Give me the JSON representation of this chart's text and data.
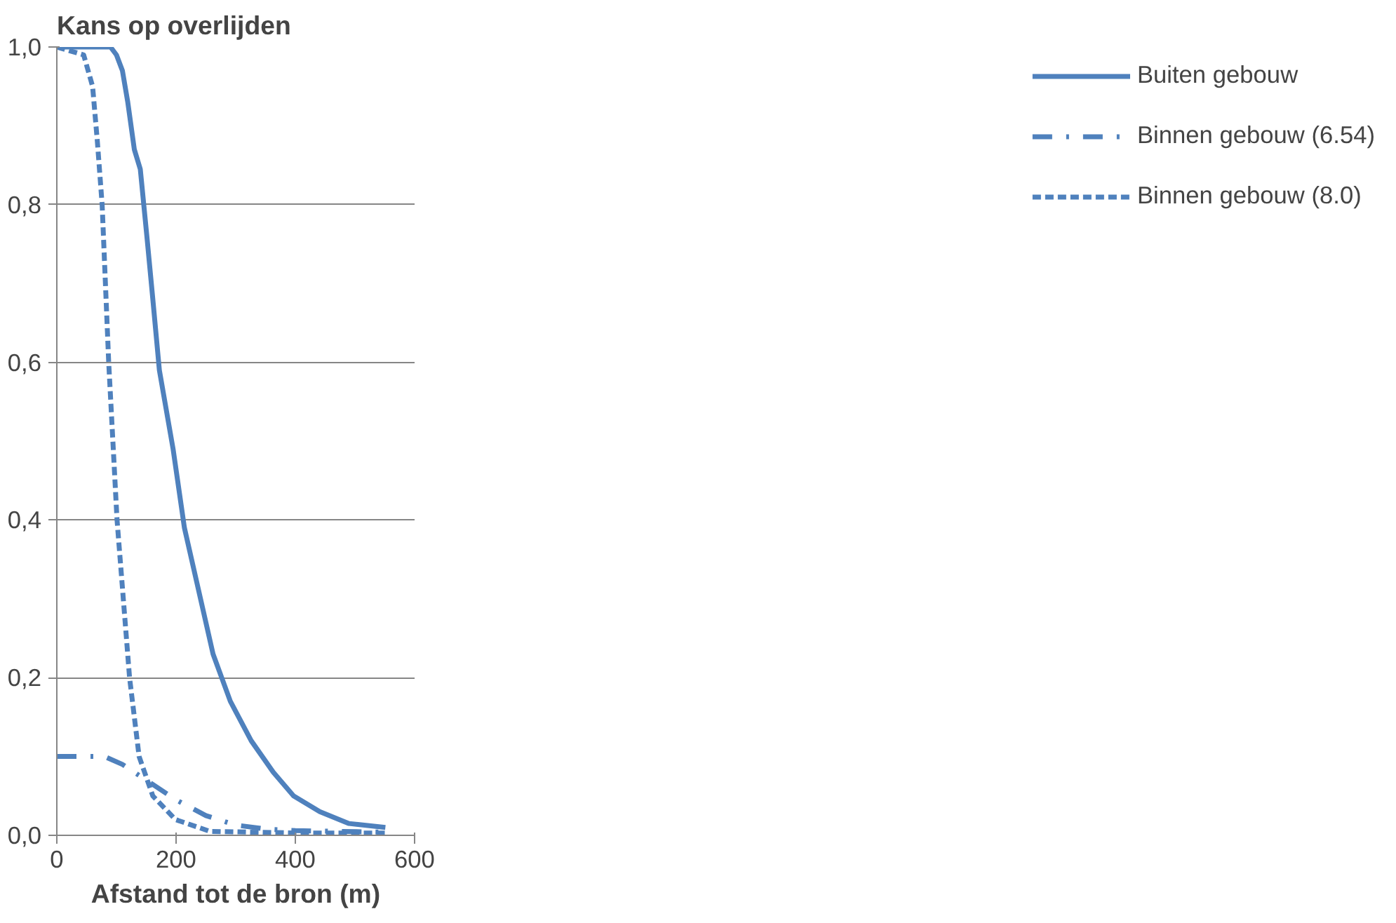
{
  "chart_data": {
    "type": "line",
    "title": "Kans op overlijden",
    "xlabel": "Afstand tot de bron (m)",
    "xlim": [
      0,
      600
    ],
    "xticks": [
      0,
      200,
      400,
      600
    ],
    "ylim": [
      0,
      1.0
    ],
    "yticks": [
      {
        "value": 0,
        "label": "0,0"
      },
      {
        "value": 0.2,
        "label": "0,2"
      },
      {
        "value": 0.4,
        "label": "0,4"
      },
      {
        "value": 0.6,
        "label": "0,6"
      },
      {
        "value": 0.8,
        "label": "0,8"
      },
      {
        "value": 1.0,
        "label": "1,0"
      }
    ],
    "grid": "y",
    "legend": "right",
    "marker": "none",
    "series": [
      {
        "name": "Buiten gebouw",
        "color": "#4f81bd",
        "line_style": "solid",
        "x": [
          0,
          50,
          90,
          100,
          110,
          119,
          130,
          140,
          151,
          161,
          172,
          195,
          214,
          238,
          262,
          291,
          326,
          363,
          397,
          441,
          490,
          551
        ],
        "values": [
          1.0,
          1.0,
          1.0,
          0.99,
          0.97,
          0.93,
          0.87,
          0.845,
          0.76,
          0.68,
          0.59,
          0.49,
          0.39,
          0.31,
          0.23,
          0.17,
          0.12,
          0.08,
          0.05,
          0.03,
          0.015,
          0.01
        ]
      },
      {
        "name": "Binnen gebouw (6.54)",
        "color": "#4f81bd",
        "line_style": "dashdot",
        "x": [
          0,
          40,
          80,
          110,
          130,
          160,
          200,
          250,
          300,
          350,
          400,
          550
        ],
        "values": [
          0.1,
          0.1,
          0.1,
          0.09,
          0.08,
          0.065,
          0.045,
          0.025,
          0.013,
          0.008,
          0.006,
          0.004
        ]
      },
      {
        "name": "Binnen gebouw (8.0)",
        "color": "#4f81bd",
        "line_style": "dashed",
        "x": [
          0,
          45,
          60,
          68,
          76,
          87,
          101,
          122,
          138,
          161,
          199,
          257,
          400,
          550
        ],
        "values": [
          1.0,
          0.99,
          0.95,
          0.88,
          0.8,
          0.6,
          0.4,
          0.2,
          0.1,
          0.05,
          0.02,
          0.005,
          0.003,
          0.003
        ]
      }
    ]
  }
}
